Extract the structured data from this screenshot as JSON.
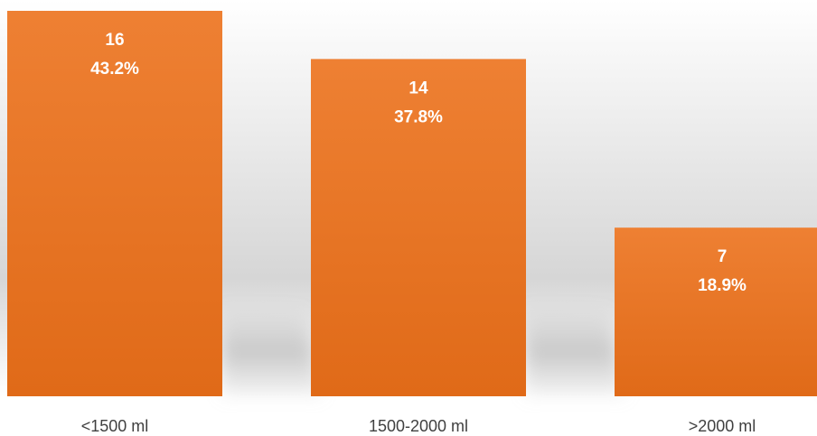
{
  "chart_data": {
    "type": "bar",
    "categories": [
      "<1500 ml",
      "1500-2000 ml",
      ">2000 ml"
    ],
    "values": [
      16,
      14,
      7
    ],
    "percentages": [
      "43.2%",
      "37.8%",
      "18.9%"
    ],
    "ylim": [
      0,
      16
    ],
    "grid": false,
    "legend": "none",
    "colors": {
      "bar_top": "#EE8033",
      "bar_bottom": "#E06A18",
      "label_text": "#FFFFFF",
      "category_text": "#404040",
      "backdrop_light": "#F7F7F7",
      "backdrop_dark": "#D2D2D2"
    }
  }
}
